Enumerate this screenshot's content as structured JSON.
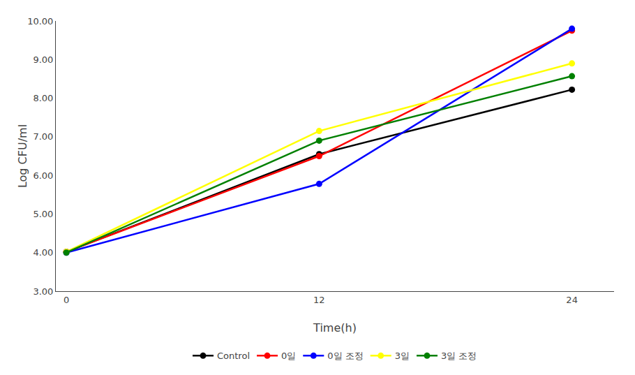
{
  "chart_data": {
    "type": "line",
    "x": [
      0,
      12,
      24
    ],
    "series": [
      {
        "name": "Control",
        "color": "#000000",
        "marker": "circle",
        "line_style": "solid",
        "values": [
          4.02,
          6.55,
          8.22
        ]
      },
      {
        "name": "0일",
        "color": "#FF0000",
        "marker": "circle",
        "line_style": "solid",
        "values": [
          4.02,
          6.5,
          9.75
        ]
      },
      {
        "name": "0일 조정",
        "color": "#0000FF",
        "marker": "circle",
        "line_style": "solid",
        "values": [
          4.0,
          5.78,
          9.8
        ]
      },
      {
        "name": "3일",
        "color": "#FFFF00",
        "marker": "circle",
        "line_style": "solid",
        "values": [
          4.02,
          7.15,
          8.9
        ]
      },
      {
        "name": "3일 조정",
        "color": "#008000",
        "marker": "circle",
        "line_style": "solid",
        "values": [
          4.0,
          6.9,
          8.57
        ]
      }
    ],
    "xlabel": "Time(h)",
    "ylabel": "Log CFU/ml",
    "xlim": [
      -0.5,
      26
    ],
    "ylim": [
      3,
      10
    ],
    "xticks": [
      0,
      12,
      24
    ],
    "yticks": [
      {
        "value": 3,
        "label": "3.00"
      },
      {
        "value": 4,
        "label": "4.00"
      },
      {
        "value": 5,
        "label": "5.00"
      },
      {
        "value": 6,
        "label": "6.00"
      },
      {
        "value": 7,
        "label": "7.00"
      },
      {
        "value": 8,
        "label": "8.00"
      },
      {
        "value": 9,
        "label": "9.00"
      },
      {
        "value": 10,
        "label": "10.00"
      }
    ],
    "grid": false,
    "legend": "bottom"
  }
}
